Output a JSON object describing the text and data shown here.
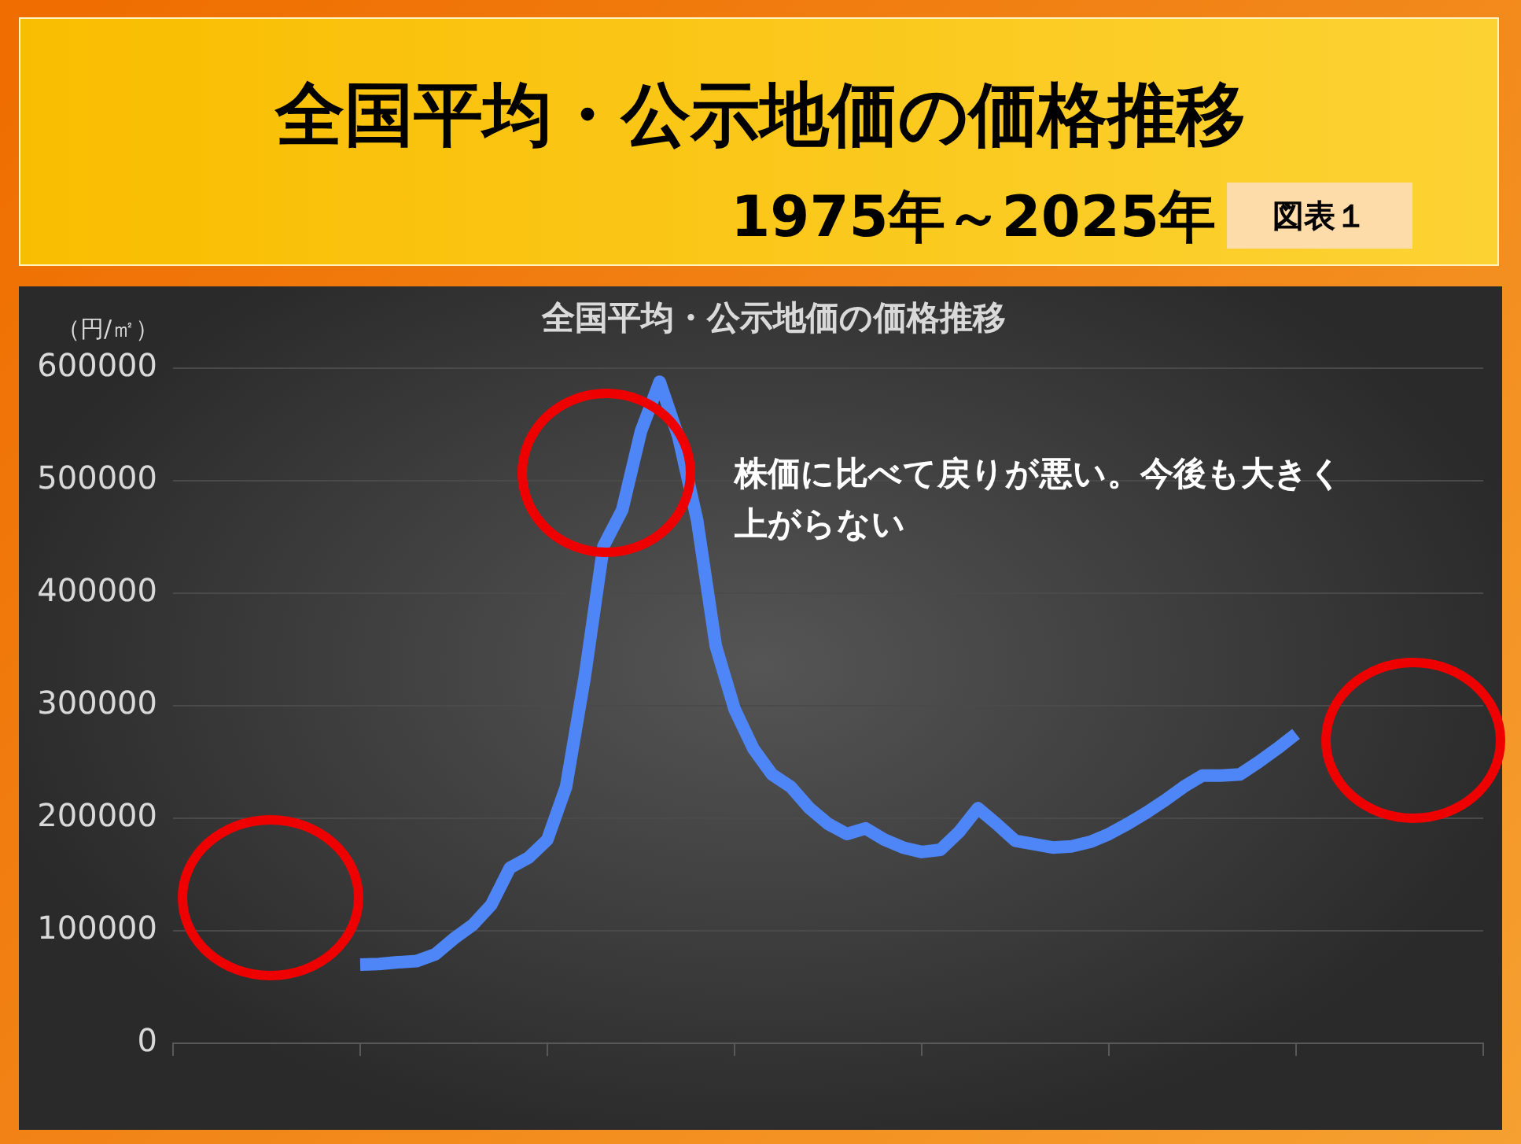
{
  "chart_data": {
    "type": "line",
    "title": "全国平均・公示地価の価格推移",
    "subtitle": "1975年～2025年",
    "ylabel": "（円/㎡）",
    "annotations": [
      "図表１",
      "株価に比べて戻りが悪い。今後も大きく上がらない"
    ],
    "categories": [
      null,
      null,
      null,
      null,
      null,
      null,
      null,
      null,
      null,
      null,
      null,
      null,
      null,
      null,
      null,
      null,
      null,
      null,
      null,
      null,
      null,
      null,
      null,
      null,
      null,
      null,
      null,
      null,
      null,
      null,
      null,
      null,
      null,
      null,
      null,
      null,
      null,
      null,
      null,
      null,
      null,
      null,
      null,
      null,
      null,
      null,
      null,
      null,
      null,
      null,
      null,
      null,
      null,
      null,
      null,
      null,
      null,
      null,
      null,
      null,
      null,
      null,
      null,
      null,
      null,
      null,
      null,
      null,
      null,
      null,
      null
    ],
    "series": [
      {
        "color": "#4f86f7",
        "values": [
          null,
          null,
          null,
          null,
          null,
          null,
          null,
          null,
          null,
          null,
          70000,
          70500,
          72000,
          73000,
          79000,
          93000,
          105000,
          123000,
          156000,
          165000,
          181000,
          228000,
          326000,
          442000,
          474000,
          544000,
          588000,
          539000,
          465000,
          353000,
          297000,
          262000,
          239000,
          228000,
          209000,
          195000,
          186000,
          191000,
          181000,
          174000,
          170000,
          172000,
          188000,
          209000,
          195000,
          180000,
          177000,
          174000,
          175000,
          179000,
          186000,
          195000,
          205000,
          216000,
          228000,
          238000,
          238000,
          239000,
          250000,
          262000,
          275000,
          null,
          null,
          null,
          null,
          null,
          null,
          null,
          null,
          null,
          null
        ]
      }
    ],
    "ylim": [
      0,
      600000
    ],
    "yticks": [
      0,
      100000,
      200000,
      300000,
      400000,
      500000,
      600000
    ],
    "grid": "y",
    "legend": false,
    "marker": "none",
    "line_style": "solid"
  }
}
